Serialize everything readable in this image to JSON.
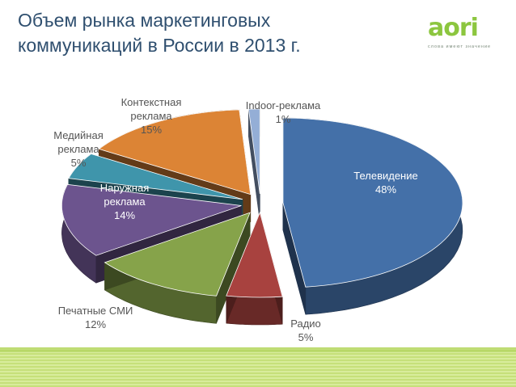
{
  "title_line1": "Объем рынка маркетинговых",
  "title_line2": "коммуникаций в России в 2013 г.",
  "logo": {
    "word": "aori",
    "tagline": "слова имеют значение"
  },
  "colors": {
    "title": "#2f4f6f",
    "brand": "#8cc63f",
    "footer": "#c6e07a"
  },
  "chart_data": {
    "type": "pie",
    "title": "Объем рынка маркетинговых коммуникаций в России в 2013 г.",
    "slices": [
      {
        "name": "Телевидение",
        "value": 48,
        "label_lines": [
          "Телевидение",
          "48%"
        ],
        "color": "#4470a8"
      },
      {
        "name": "Радио",
        "value": 5,
        "label_lines": [
          "Радио",
          "5%"
        ],
        "color": "#a8423f"
      },
      {
        "name": "Печатные СМИ",
        "value": 12,
        "label_lines": [
          "Печатные СМИ",
          "12%"
        ],
        "color": "#86a34a"
      },
      {
        "name": "Наружная реклама",
        "value": 14,
        "label_lines": [
          "Наружная",
          "реклама",
          "14%"
        ],
        "color": "#6c548e"
      },
      {
        "name": "Медийная реклама",
        "value": 5,
        "label_lines": [
          "Медийная",
          "реклама",
          "5%"
        ],
        "color": "#3f95ab"
      },
      {
        "name": "Контекстная реклама",
        "value": 15,
        "label_lines": [
          "Контекстная",
          "реклама",
          "15%"
        ],
        "color": "#dc8435"
      },
      {
        "name": "Indoor-реклама",
        "value": 1,
        "label_lines": [
          "Indoor-реклама",
          "1%"
        ],
        "color": "#94aed6"
      }
    ]
  }
}
